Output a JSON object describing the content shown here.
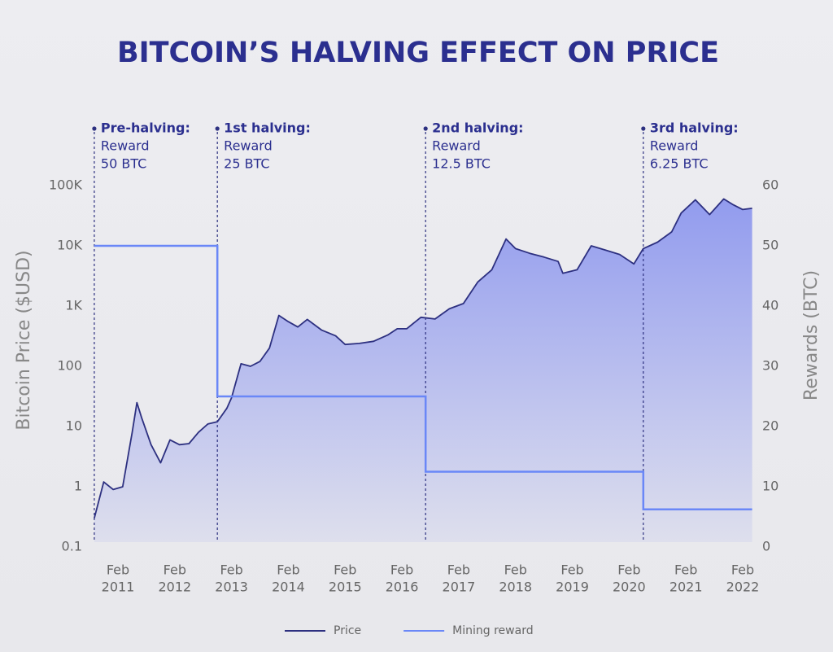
{
  "chart_data": {
    "type": "line",
    "title": "BITCOIN’S HALVING EFFECT ON PRICE",
    "y_label": "Bitcoin Price ($USD)",
    "y2_label": "Rewards (BTC)",
    "log_y": true,
    "legend": "bottom",
    "area_fill": "#8d97ee",
    "xlim": [
      "2010-09",
      "2022-04"
    ],
    "xticks": [
      {
        "value": "2011-02",
        "label": [
          "Feb",
          "2011"
        ]
      },
      {
        "value": "2012-02",
        "label": [
          "Feb",
          "2012"
        ]
      },
      {
        "value": "2013-02",
        "label": [
          "Feb",
          "2013"
        ]
      },
      {
        "value": "2014-02",
        "label": [
          "Feb",
          "2014"
        ]
      },
      {
        "value": "2015-02",
        "label": [
          "Feb",
          "2015"
        ]
      },
      {
        "value": "2016-02",
        "label": [
          "Feb",
          "2016"
        ]
      },
      {
        "value": "2017-02",
        "label": [
          "Feb",
          "2017"
        ]
      },
      {
        "value": "2018-02",
        "label": [
          "Feb",
          "2018"
        ]
      },
      {
        "value": "2019-02",
        "label": [
          "Feb",
          "2019"
        ]
      },
      {
        "value": "2020-02",
        "label": [
          "Feb",
          "2020"
        ]
      },
      {
        "value": "2021-02",
        "label": [
          "Feb",
          "2021"
        ]
      },
      {
        "value": "2022-02",
        "label": [
          "Feb",
          "2022"
        ]
      }
    ],
    "ylim": [
      0.1,
      100000
    ],
    "yticks": [
      0.1,
      1,
      10,
      100,
      {
        "value": 1000,
        "label": "1K"
      },
      {
        "value": 10000,
        "label": "10K"
      },
      {
        "value": 100000,
        "label": "100K"
      }
    ],
    "y2lim": [
      0,
      60
    ],
    "y2ticks": [
      0,
      10,
      20,
      30,
      40,
      50,
      60
    ],
    "annotations": [
      {
        "x": "2010-09",
        "title": "Pre-halving:",
        "text": [
          "Reward",
          "50 BTC"
        ]
      },
      {
        "x": "2012-11",
        "title": "1st halving:",
        "text": [
          "Reward",
          "25 BTC"
        ]
      },
      {
        "x": "2016-07",
        "title": "2nd halving:",
        "text": [
          "Reward",
          "12.5 BTC"
        ]
      },
      {
        "x": "2020-05",
        "title": "3rd halving:",
        "text": [
          "Reward",
          "6.25 BTC"
        ]
      }
    ],
    "series": [
      {
        "name": "Price",
        "color": "#2d3080",
        "x": [
          "2010-09",
          "2010-11",
          "2011-01",
          "2011-03",
          "2011-05",
          "2011-06",
          "2011-07",
          "2011-09",
          "2011-11",
          "2012-01",
          "2012-03",
          "2012-05",
          "2012-07",
          "2012-09",
          "2012-11",
          "2013-01",
          "2013-02",
          "2013-04",
          "2013-06",
          "2013-08",
          "2013-10",
          "2013-12",
          "2014-02",
          "2014-04",
          "2014-06",
          "2014-09",
          "2014-12",
          "2015-02",
          "2015-05",
          "2015-08",
          "2015-11",
          "2016-01",
          "2016-03",
          "2016-06",
          "2016-09",
          "2016-12",
          "2017-03",
          "2017-06",
          "2017-09",
          "2017-12",
          "2018-02",
          "2018-05",
          "2018-08",
          "2018-11",
          "2018-12",
          "2019-03",
          "2019-06",
          "2019-09",
          "2019-12",
          "2020-03",
          "2020-05",
          "2020-08",
          "2020-11",
          "2021-01",
          "2021-04",
          "2021-07",
          "2021-10",
          "2021-12",
          "2022-02",
          "2022-04"
        ],
        "values": [
          0.3,
          1.2,
          0.9,
          1,
          8,
          25,
          14,
          5,
          2.5,
          6,
          5,
          5.2,
          8,
          11,
          12,
          20,
          30,
          110,
          100,
          120,
          200,
          700,
          550,
          450,
          600,
          400,
          320,
          230,
          240,
          260,
          330,
          420,
          420,
          650,
          610,
          900,
          1100,
          2500,
          4000,
          13000,
          9000,
          7500,
          6500,
          5500,
          3500,
          4000,
          10000,
          8500,
          7200,
          5000,
          9000,
          11500,
          17000,
          35000,
          58000,
          33000,
          60000,
          48000,
          40000,
          42000
        ]
      },
      {
        "name": "Mining reward",
        "color": "#6a87f7",
        "axis": "y2",
        "x": [
          "2010-09",
          "2012-11",
          "2012-11",
          "2016-07",
          "2016-07",
          "2020-05",
          "2020-05",
          "2022-04"
        ],
        "values": [
          50,
          50,
          25,
          25,
          12.5,
          12.5,
          6.25,
          6.25
        ]
      }
    ]
  }
}
